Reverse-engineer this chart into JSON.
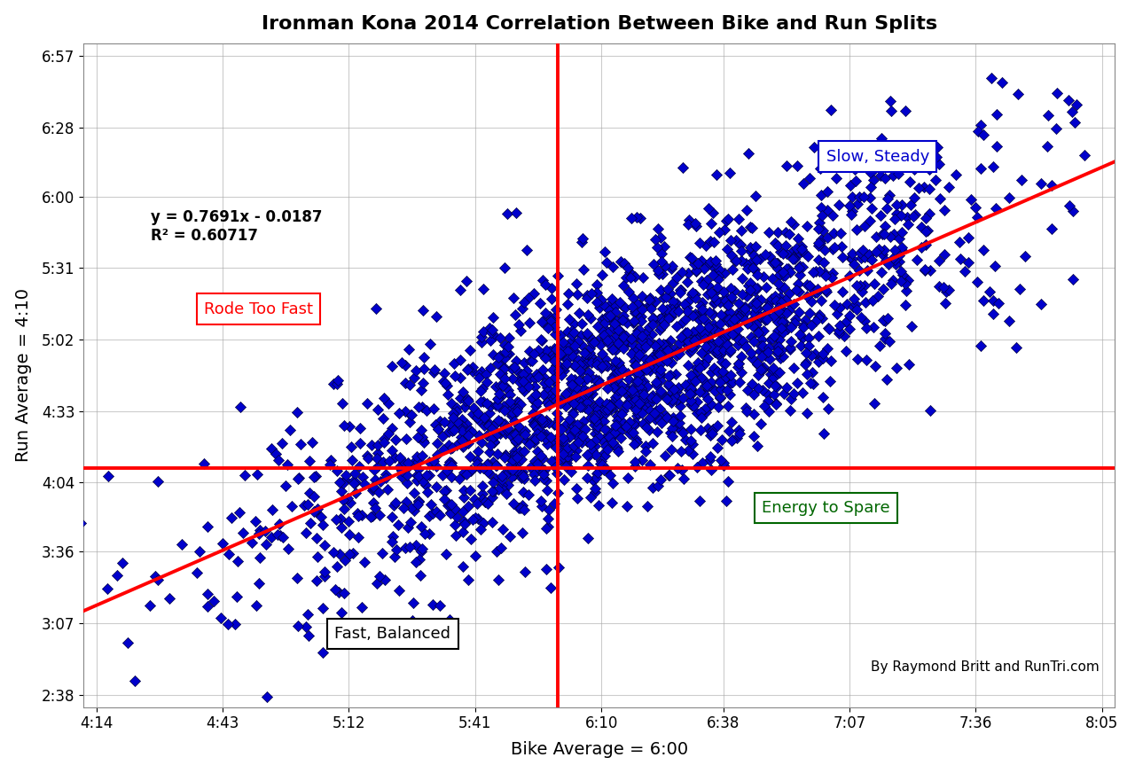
{
  "title": "Ironman Kona 2014 Correlation Between Bike and Run Splits",
  "xlabel": "Bike Average = 6:00",
  "ylabel": "Run Average = 4:10",
  "equation": "y = 0.7691x - 0.0187",
  "r_squared": "R² = 0.60717",
  "credit": "By Raymond Britt and RunTri.com",
  "bike_avg_min": 360,
  "run_avg_min": 250,
  "x_min_min": 254,
  "x_max_min": 485,
  "y_min_min": 158,
  "y_max_min": 417,
  "x_ticks_labels": [
    "4:14",
    "4:43",
    "5:12",
    "5:41",
    "6:10",
    "6:38",
    "7:07",
    "7:36",
    "8:05"
  ],
  "x_ticks_min": [
    254,
    283,
    312,
    341,
    370,
    398,
    427,
    456,
    485
  ],
  "y_ticks_labels": [
    "2:38",
    "3:07",
    "3:36",
    "4:04",
    "4:33",
    "5:02",
    "5:31",
    "6:00",
    "6:28",
    "6:57"
  ],
  "y_ticks_min": [
    158,
    187,
    216,
    244,
    273,
    302,
    331,
    360,
    388,
    417
  ],
  "slope": 0.7691,
  "intercept_min": -0.0187,
  "dot_color": "#0000CC",
  "line_color": "#FF0000",
  "background_color": "#FFFFFF",
  "grid_color": "#AAAAAA",
  "annotation_boxes": [
    {
      "text": "Rode Too Fast",
      "xf": 0.17,
      "yf": 0.6,
      "edgecolor": "#FF0000",
      "textcolor": "#FF0000"
    },
    {
      "text": "Slow, Steady",
      "xf": 0.77,
      "yf": 0.83,
      "edgecolor": "#0000CC",
      "textcolor": "#0000CC"
    },
    {
      "text": "Fast, Balanced",
      "xf": 0.3,
      "yf": 0.11,
      "edgecolor": "black",
      "textcolor": "black"
    },
    {
      "text": "Energy to Spare",
      "xf": 0.72,
      "yf": 0.3,
      "edgecolor": "#006600",
      "textcolor": "#006600"
    }
  ],
  "seed": 42,
  "n_points": 2200
}
